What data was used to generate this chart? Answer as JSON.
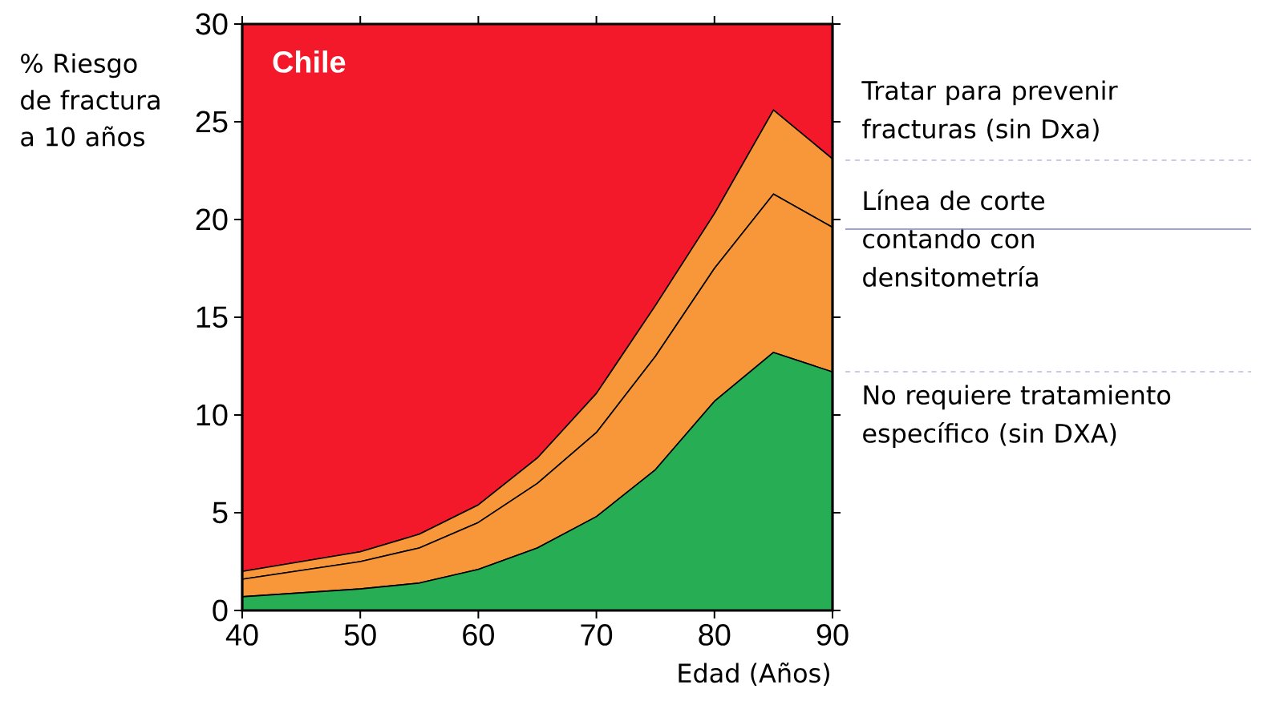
{
  "chart_data": {
    "type": "area",
    "stacked": true,
    "title": "Chile",
    "xlabel": "Edad (Años)",
    "ylabel": "% Riesgo de fractura a 10 años",
    "x": [
      40,
      50,
      55,
      60,
      65,
      70,
      75,
      80,
      85,
      90
    ],
    "series": [
      {
        "color": "#27ae55",
        "values": [
          0.7,
          1.1,
          1.4,
          2.1,
          3.2,
          4.8,
          7.2,
          10.7,
          13.2,
          12.2
        ]
      },
      {
        "color": "#f7973a",
        "values": [
          0.9,
          1.4,
          1.8,
          2.4,
          3.3,
          4.3,
          5.8,
          6.8,
          8.1,
          7.4
        ]
      },
      {
        "color": "#f7973a",
        "values": [
          0.4,
          0.5,
          0.7,
          0.9,
          1.3,
          2.0,
          2.6,
          2.8,
          4.3,
          3.5
        ]
      },
      {
        "color": "#f4182b",
        "values": [
          28.0,
          27.0,
          26.1,
          24.6,
          22.2,
          18.9,
          14.4,
          9.7,
          4.4,
          6.9
        ]
      }
    ],
    "xlim": [
      40,
      90
    ],
    "ylim": [
      0,
      30
    ],
    "xticks": [
      40,
      50,
      60,
      70,
      80,
      90
    ],
    "yticks": [
      0,
      5,
      10,
      15,
      20,
      25,
      30
    ],
    "annotations": [
      "Tratar para prevenir fracturas (sin Dxa)",
      "Línea de corte contando con densitometría",
      "No requiere tratamiento específico (sin DXA)"
    ]
  }
}
